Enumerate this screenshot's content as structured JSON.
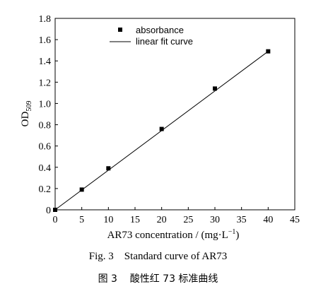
{
  "chart_data": {
    "type": "scatter",
    "x": [
      0,
      5,
      10,
      20,
      30,
      40
    ],
    "y": [
      0.0,
      0.19,
      0.39,
      0.76,
      1.14,
      1.49
    ],
    "series": [
      {
        "name": "absorbance",
        "kind": "points",
        "x": [
          0,
          5,
          10,
          20,
          30,
          40
        ],
        "values": [
          0.0,
          0.19,
          0.39,
          0.76,
          1.14,
          1.49
        ]
      },
      {
        "name": "linear fit curve",
        "kind": "line",
        "x": [
          0,
          40
        ],
        "values": [
          0.0,
          1.49
        ]
      }
    ],
    "xlabel_main": "AR73 concentration / (mg·L",
    "xlabel_sup": "−1",
    "xlabel_tail": ")",
    "ylabel_main": "OD",
    "ylabel_sub": "509",
    "xlim": [
      0,
      45
    ],
    "ylim": [
      0,
      1.8
    ],
    "xticks": [
      0,
      5,
      10,
      15,
      20,
      25,
      30,
      35,
      40,
      45
    ],
    "yticks": [
      "0",
      "0.2",
      "0.4",
      "0.6",
      "0.8",
      "1.0",
      "1.2",
      "1.4",
      "1.6",
      "1.8"
    ],
    "legend_position": "top-left",
    "grid": false
  },
  "captions": {
    "english": "Fig. 3    Standard curve of AR73",
    "chinese": "图 3    酸性红 73 标准曲线"
  }
}
